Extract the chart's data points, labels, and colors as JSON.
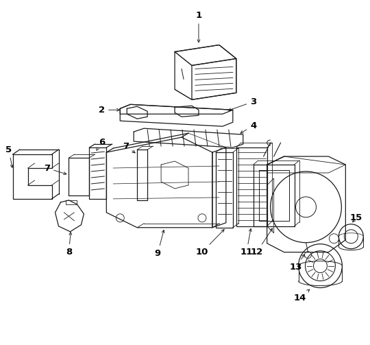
{
  "background_color": "#ffffff",
  "line_color": "#1a1a1a",
  "text_color": "#000000",
  "fig_width": 5.4,
  "fig_height": 5.03,
  "dpi": 100
}
